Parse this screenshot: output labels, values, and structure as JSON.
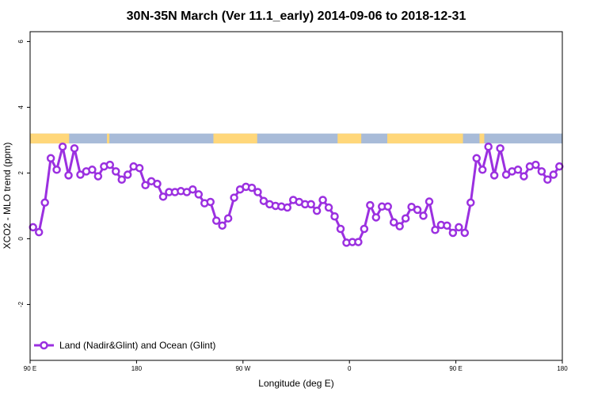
{
  "chart_data": {
    "type": "line",
    "title": "30N-35N March (Ver 11.1_early)   2014-09-06 to 2018-12-31",
    "xlabel": "Longitude (deg E)",
    "ylabel": "XCO2 - MLO trend (ppm)",
    "xlim": [
      90,
      540
    ],
    "ylim": [
      -3.7,
      6.3
    ],
    "x_ticks": [
      {
        "value": 90,
        "label": "90 E"
      },
      {
        "value": 180,
        "label": "180"
      },
      {
        "value": 270,
        "label": "90 W"
      },
      {
        "value": 360,
        "label": "0"
      },
      {
        "value": 450,
        "label": "90 E"
      },
      {
        "value": 540,
        "label": "180"
      }
    ],
    "y_ticks": [
      {
        "value": -2,
        "label": "-2"
      },
      {
        "value": 0,
        "label": "0"
      },
      {
        "value": 2,
        "label": "2"
      },
      {
        "value": 4,
        "label": "4"
      },
      {
        "value": 6,
        "label": "6"
      }
    ],
    "surface_band": {
      "y_range": [
        2.9,
        3.2
      ],
      "land_color": "#FFD77A",
      "ocean_color": "#A8BBD8",
      "land_segments": [
        [
          90,
          123
        ],
        [
          155,
          157
        ],
        [
          245,
          282
        ],
        [
          350,
          370
        ],
        [
          392,
          456
        ],
        [
          470,
          474
        ]
      ]
    },
    "series": [
      {
        "name": "Land (Nadir&Glint) and Ocean (Glint)",
        "color": "#9B30E0",
        "x": [
          92.5,
          97.5,
          102.5,
          107.5,
          112.5,
          117.5,
          122.5,
          127.5,
          132.5,
          137.5,
          142.5,
          147.5,
          152.5,
          157.5,
          162.5,
          167.5,
          172.5,
          177.5,
          182.5,
          187.5,
          192.5,
          197.5,
          202.5,
          207.5,
          212.5,
          217.5,
          222.5,
          227.5,
          232.5,
          237.5,
          242.5,
          247.5,
          252.5,
          257.5,
          262.5,
          267.5,
          272.5,
          277.5,
          282.5,
          287.5,
          292.5,
          297.5,
          302.5,
          307.5,
          312.5,
          317.5,
          322.5,
          327.5,
          332.5,
          337.5,
          342.5,
          347.5,
          352.5,
          357.5,
          362.5,
          367.5,
          372.5,
          377.5,
          382.5,
          387.5,
          392.5,
          397.5,
          402.5,
          407.5,
          412.5,
          417.5,
          422.5,
          427.5,
          432.5,
          437.5,
          442.5,
          447.5,
          452.5,
          457.5,
          462.5,
          467.5,
          472.5,
          477.5,
          482.5,
          487.5,
          492.5,
          497.5,
          502.5,
          507.5,
          512.5,
          517.5,
          522.5,
          527.5,
          532.5,
          537.5
        ],
        "y": [
          0.35,
          0.2,
          1.1,
          2.45,
          2.1,
          2.8,
          1.93,
          2.75,
          1.95,
          2.05,
          2.1,
          1.9,
          2.2,
          2.25,
          2.05,
          1.8,
          1.95,
          2.2,
          2.15,
          1.63,
          1.75,
          1.67,
          1.28,
          1.42,
          1.42,
          1.45,
          1.42,
          1.5,
          1.35,
          1.08,
          1.12,
          0.55,
          0.4,
          0.62,
          1.25,
          1.5,
          1.58,
          1.55,
          1.42,
          1.15,
          1.05,
          1.0,
          0.98,
          0.95,
          1.18,
          1.12,
          1.05,
          1.05,
          0.85,
          1.18,
          0.95,
          0.68,
          0.3,
          -0.12,
          -0.1,
          -0.1,
          0.3,
          1.02,
          0.65,
          0.98,
          0.98,
          0.5,
          0.38,
          0.62,
          0.97,
          0.88,
          0.7,
          1.13,
          0.27,
          0.42,
          0.4,
          0.18,
          0.35,
          0.18,
          1.1,
          2.45,
          2.1,
          2.8,
          1.93,
          2.75,
          1.95,
          2.05,
          2.1,
          1.9,
          2.2,
          2.25,
          2.05,
          1.8,
          1.95,
          2.2
        ]
      }
    ],
    "legend_position": "bottom-left",
    "grid": false
  }
}
